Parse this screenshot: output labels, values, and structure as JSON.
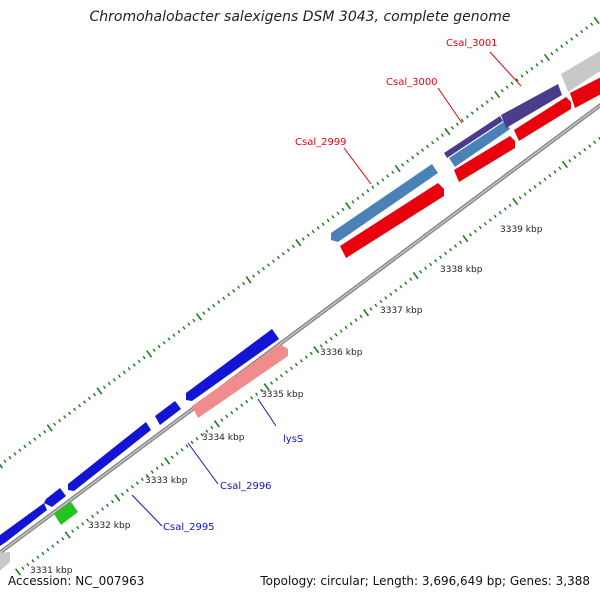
{
  "title": "Chromohalobacter salexigens DSM 3043, complete genome",
  "footer": {
    "accession": "Accession: NC_007963",
    "info": "Topology: circular; Length: 3,696,649 bp; Genes: 3,388"
  },
  "ticks": [
    {
      "label": "3331 kbp"
    },
    {
      "label": "3332 kbp"
    },
    {
      "label": "3333 kbp"
    },
    {
      "label": "3334 kbp"
    },
    {
      "label": "3335 kbp"
    },
    {
      "label": "3336 kbp"
    },
    {
      "label": "3337 kbp"
    },
    {
      "label": "3338 kbp"
    },
    {
      "label": "3339 kbp"
    }
  ],
  "gene_labels": {
    "csal_3001": "Csal_3001",
    "csal_3000": "Csal_3000",
    "csal_2999": "Csal_2999",
    "lysS": "lysS",
    "csal_2996": "Csal_2996",
    "csal_2995": "Csal_2995"
  },
  "colors": {
    "backbone": "#9a9a9a",
    "forward_cds": "#e8000d",
    "reverse_cds": "#1414d4",
    "steelblue_gene": "#4a82b8",
    "purple_gene": "#4a3c8c",
    "pink_gene": "#f08c8c",
    "green_gene": "#22c422",
    "grey_gene": "#c8c8c8",
    "tick": "#1c7a1c"
  }
}
